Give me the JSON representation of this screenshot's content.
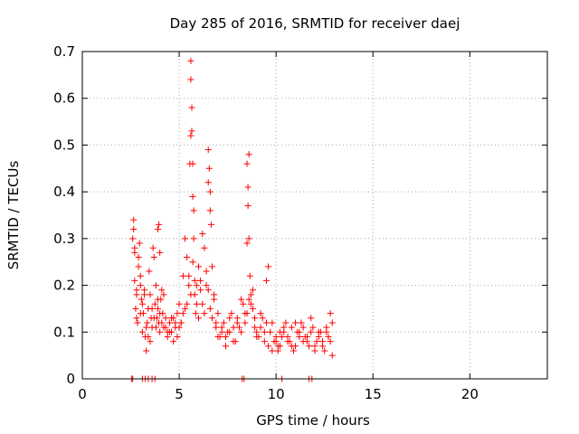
{
  "chart_data": {
    "type": "scatter",
    "title": "Day 285 of 2016, SRMTID for receiver daej",
    "xlabel": "GPS time / hours",
    "ylabel": "SRMTID / TECUs",
    "xlim": [
      0,
      24
    ],
    "ylim": [
      0,
      0.7
    ],
    "x_ticks": [
      "0",
      "5",
      "10",
      "15",
      "20"
    ],
    "y_ticks": [
      "0",
      "0.1",
      "0.2",
      "0.3",
      "0.4",
      "0.5",
      "0.6",
      "0.7"
    ],
    "grid": true,
    "legend": "none",
    "marker": "plus",
    "color": "#ff0000",
    "series": [
      {
        "x": [
          2.6,
          2.65,
          2.7,
          2.75,
          2.8,
          2.85,
          2.9,
          2.95,
          3.0,
          3.05,
          3.1,
          3.15,
          3.2,
          3.25,
          3.3,
          3.35,
          3.4,
          3.45,
          3.5,
          3.55,
          3.6,
          3.65,
          3.7,
          3.75,
          3.8,
          3.85,
          3.9,
          3.95,
          4.0,
          4.05,
          4.1,
          4.15,
          4.2,
          4.3,
          4.4,
          4.5,
          4.6,
          4.7,
          4.8,
          4.9,
          5.0,
          5.1,
          5.2,
          5.3,
          5.4,
          5.5,
          5.55,
          5.6,
          5.65,
          5.7,
          5.75,
          5.8,
          5.85,
          5.9,
          6.0,
          6.1,
          6.2,
          6.3,
          6.4,
          6.5,
          6.6,
          6.7,
          6.8,
          6.9,
          7.0,
          7.2,
          7.4,
          7.6,
          7.8,
          8.0,
          8.2,
          8.4,
          8.5,
          8.55,
          8.6,
          8.65,
          8.7,
          8.8,
          8.9,
          9.0,
          9.2,
          9.4,
          9.5,
          9.6,
          9.8,
          10.0,
          10.1,
          10.2,
          10.4,
          10.6,
          10.8,
          11.0,
          11.2,
          11.4,
          11.6,
          11.8,
          12.0,
          12.2,
          12.4,
          12.6,
          12.8,
          12.9,
          2.7,
          2.8,
          2.9,
          3.0,
          3.1,
          3.3,
          3.5,
          3.7,
          3.9,
          4.1,
          4.3,
          4.5,
          4.7,
          4.9,
          5.1,
          5.3,
          5.5,
          5.7,
          5.9,
          6.1,
          6.3,
          6.5,
          6.7,
          6.9,
          7.1,
          7.3,
          7.5,
          7.7,
          7.9,
          8.1,
          8.3,
          8.5,
          8.7,
          8.9,
          9.1,
          9.3,
          9.5,
          9.7,
          9.9,
          10.1,
          10.3,
          10.5,
          10.7,
          10.9,
          11.1,
          11.3,
          11.5,
          11.7,
          11.9,
          12.1,
          12.3,
          12.5,
          12.7,
          12.9,
          2.8,
          3.0,
          3.2,
          3.4,
          3.6,
          3.8,
          4.0,
          4.2,
          4.4,
          4.6,
          4.8,
          5.0,
          5.2,
          5.4,
          5.6,
          5.8,
          6.0,
          6.2,
          6.4,
          6.6,
          6.8,
          7.0,
          7.2,
          7.4,
          7.6,
          7.8,
          8.0,
          8.2,
          8.4,
          8.6,
          8.8,
          9.0,
          9.2,
          9.4,
          9.6,
          9.8,
          10.0,
          10.2,
          10.4,
          10.6,
          10.8,
          11.0,
          11.2,
          11.4,
          11.6,
          11.8,
          12.0,
          12.2,
          12.4,
          12.6,
          12.8,
          5.6,
          5.6,
          5.65,
          5.7,
          5.75,
          6.5,
          6.55,
          6.6,
          6.65,
          8.5,
          8.55,
          8.6,
          3.9,
          3.95,
          4.0,
          2.65,
          2.7,
          2.55,
          2.6,
          3.1,
          3.25,
          3.4,
          3.6,
          3.75,
          8.25,
          8.35,
          10.3,
          11.7,
          11.85
        ],
        "y": [
          0.3,
          0.34,
          0.21,
          0.15,
          0.18,
          0.12,
          0.26,
          0.29,
          0.22,
          0.17,
          0.1,
          0.14,
          0.19,
          0.09,
          0.06,
          0.12,
          0.15,
          0.23,
          0.18,
          0.13,
          0.11,
          0.28,
          0.26,
          0.16,
          0.2,
          0.13,
          0.15,
          0.12,
          0.1,
          0.17,
          0.19,
          0.14,
          0.11,
          0.13,
          0.09,
          0.12,
          0.1,
          0.08,
          0.11,
          0.14,
          0.16,
          0.12,
          0.22,
          0.3,
          0.26,
          0.2,
          0.46,
          0.52,
          0.58,
          0.39,
          0.3,
          0.18,
          0.14,
          0.2,
          0.24,
          0.19,
          0.31,
          0.28,
          0.23,
          0.42,
          0.36,
          0.24,
          0.17,
          0.12,
          0.14,
          0.1,
          0.09,
          0.13,
          0.11,
          0.12,
          0.17,
          0.14,
          0.29,
          0.41,
          0.48,
          0.22,
          0.16,
          0.19,
          0.13,
          0.1,
          0.14,
          0.08,
          0.21,
          0.24,
          0.12,
          0.08,
          0.06,
          0.1,
          0.11,
          0.09,
          0.07,
          0.12,
          0.1,
          0.08,
          0.09,
          0.13,
          0.07,
          0.1,
          0.08,
          0.11,
          0.14,
          0.05,
          0.27,
          0.19,
          0.24,
          0.14,
          0.16,
          0.11,
          0.08,
          0.13,
          0.17,
          0.12,
          0.11,
          0.1,
          0.13,
          0.09,
          0.12,
          0.15,
          0.22,
          0.25,
          0.16,
          0.21,
          0.14,
          0.19,
          0.13,
          0.11,
          0.09,
          0.12,
          0.1,
          0.14,
          0.08,
          0.11,
          0.16,
          0.14,
          0.18,
          0.11,
          0.09,
          0.13,
          0.12,
          0.1,
          0.08,
          0.07,
          0.09,
          0.12,
          0.08,
          0.06,
          0.1,
          0.12,
          0.09,
          0.07,
          0.11,
          0.08,
          0.1,
          0.06,
          0.09,
          0.12,
          0.13,
          0.2,
          0.18,
          0.09,
          0.15,
          0.11,
          0.14,
          0.18,
          0.1,
          0.13,
          0.12,
          0.11,
          0.14,
          0.16,
          0.18,
          0.21,
          0.13,
          0.16,
          0.2,
          0.15,
          0.18,
          0.09,
          0.11,
          0.07,
          0.1,
          0.08,
          0.13,
          0.1,
          0.12,
          0.17,
          0.15,
          0.09,
          0.11,
          0.1,
          0.07,
          0.06,
          0.09,
          0.07,
          0.1,
          0.08,
          0.11,
          0.07,
          0.09,
          0.11,
          0.08,
          0.1,
          0.06,
          0.09,
          0.07,
          0.1,
          0.08,
          0.68,
          0.64,
          0.53,
          0.46,
          0.36,
          0.49,
          0.45,
          0.4,
          0.33,
          0.46,
          0.37,
          0.3,
          0.32,
          0.33,
          0.27,
          0.32,
          0.28,
          0.0,
          0.0,
          0.0,
          0.0,
          0.0,
          0.0,
          0.0,
          0.0,
          0.0,
          0.0,
          0.0,
          0.0
        ]
      }
    ]
  }
}
